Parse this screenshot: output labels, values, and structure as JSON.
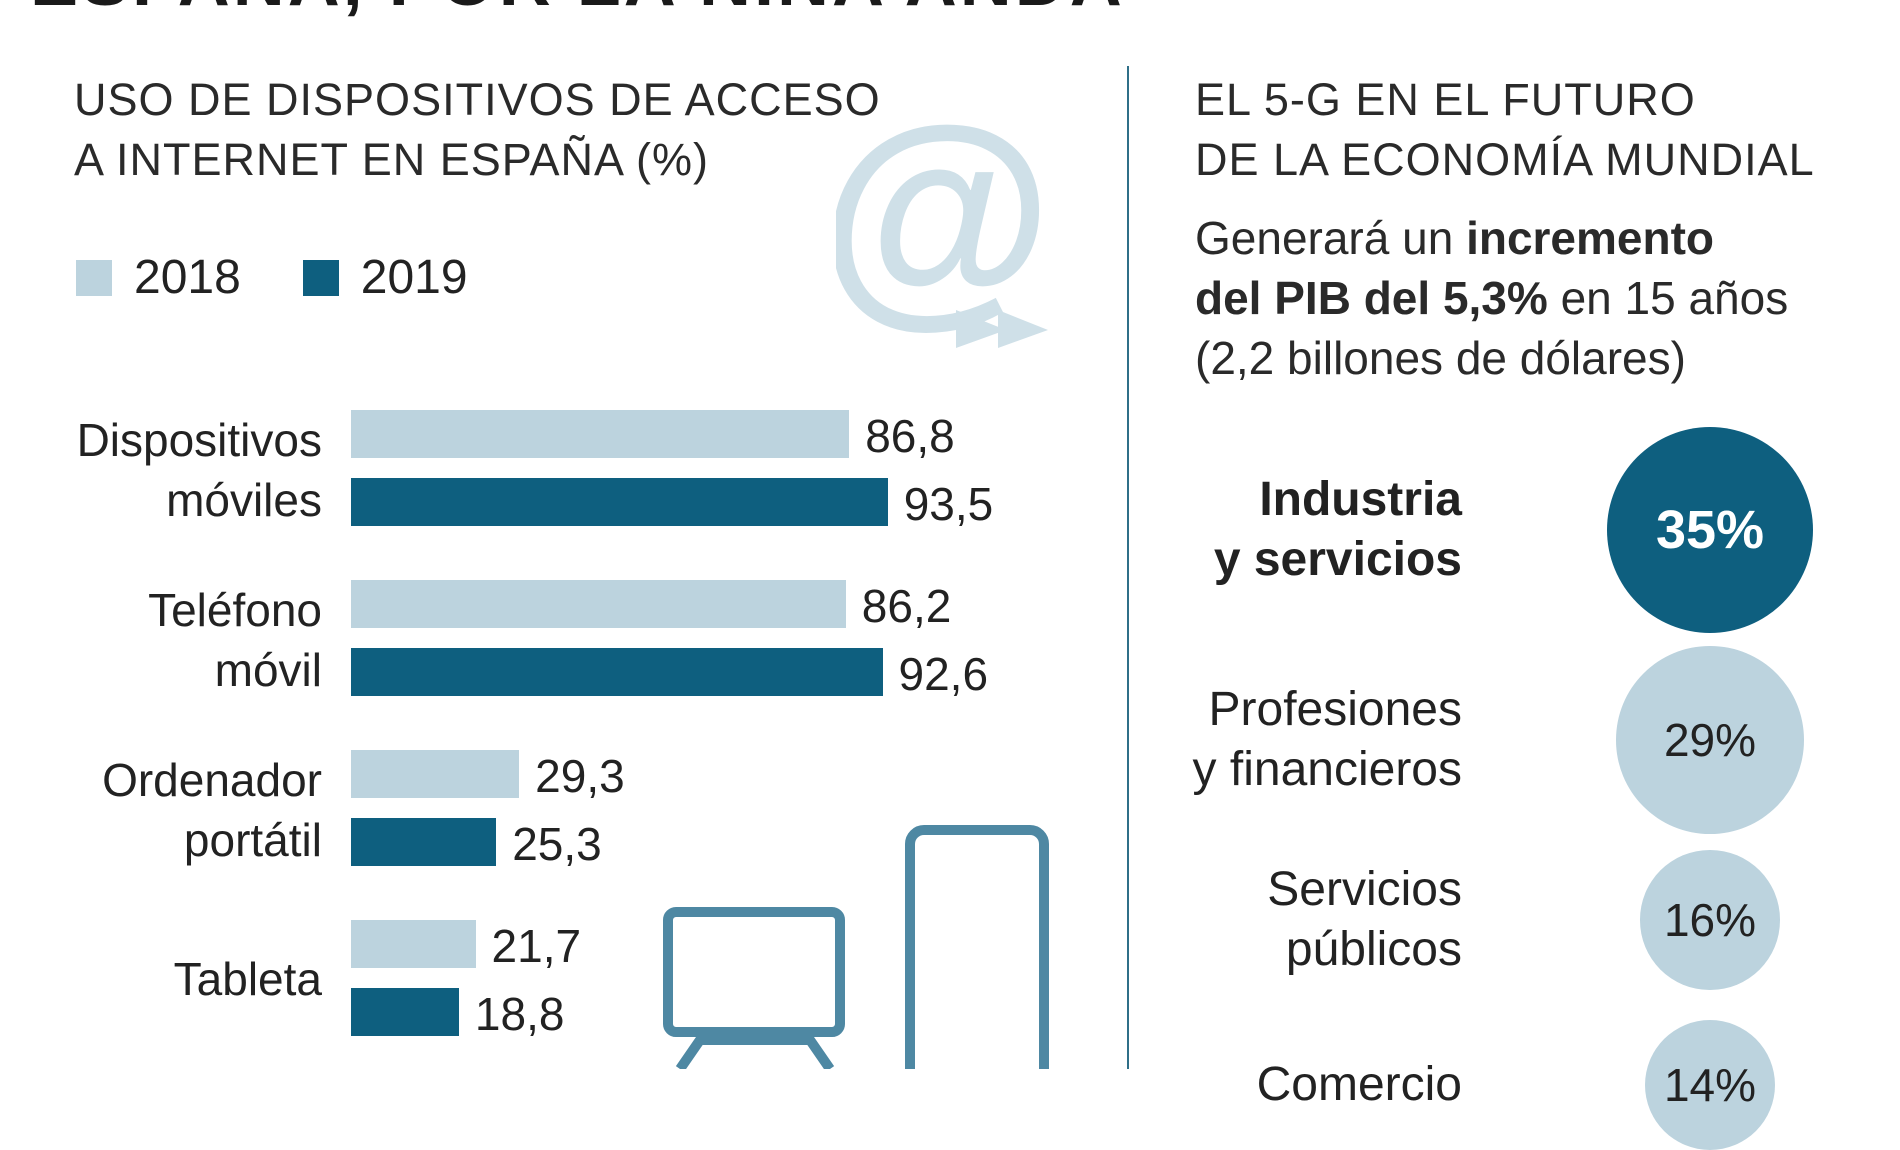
{
  "header": {
    "title": "ESPAÑA, POR LA NIÑA ANDA"
  },
  "left": {
    "title_line1": "USO DE DISPOSITIVOS DE ACCESO",
    "title_line2": "A INTERNET EN ESPAÑA (%)"
  },
  "right": {
    "title_line1": "EL 5-G EN EL FUTURO",
    "title_line2": "DE LA ECONOMÍA MUNDIAL",
    "subtitle": {
      "pre": "Generará un ",
      "bold1": "incremento",
      "bold2": "del PIB del 5,3%",
      "post": " en 15 años",
      "line3": "(2,2 billones de dólares)"
    }
  },
  "colors": {
    "light": "#bcd3de",
    "dark": "#0e5f7f",
    "icon": "#cfe0e8",
    "outline": "#4e88a3"
  },
  "chart_data": [
    {
      "type": "bar",
      "orientation": "horizontal",
      "categories": [
        {
          "line1": "Dispositivos",
          "line2": "móviles"
        },
        {
          "line1": "Teléfono",
          "line2": "móvil"
        },
        {
          "line1": "Ordenador",
          "line2": "portátil"
        },
        {
          "line1": "Tableta",
          "line2": ""
        }
      ],
      "series": [
        {
          "name": "2018",
          "values": [
            86.8,
            86.2,
            29.3,
            21.7
          ],
          "labels": [
            "86,8",
            "86,2",
            "29,3",
            "21,7"
          ]
        },
        {
          "name": "2019",
          "values": [
            93.5,
            92.6,
            25.3,
            18.8
          ],
          "labels": [
            "93,5",
            "92,6",
            "25,3",
            "18,8"
          ]
        }
      ],
      "xlim": [
        0,
        100
      ],
      "legend": "top-left"
    },
    {
      "type": "bubble",
      "items": [
        {
          "line1": "Industria",
          "line2": "y servicios",
          "value": 35,
          "label": "35%",
          "highlight": true
        },
        {
          "line1": "Profesiones",
          "line2": "y financieros",
          "value": 29,
          "label": "29%",
          "highlight": false
        },
        {
          "line1": "Servicios",
          "line2": "públicos",
          "value": 16,
          "label": "16%",
          "highlight": false
        },
        {
          "line1": "Comercio",
          "line2": "",
          "value": 14,
          "label": "14%",
          "highlight": false
        }
      ]
    }
  ]
}
